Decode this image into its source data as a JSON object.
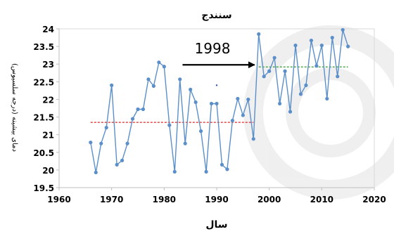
{
  "chart_data": {
    "type": "line",
    "title": "سنندج",
    "xlabel": "سال",
    "ylabel": "دمای بیشینه (درجه سلسیوس)",
    "xlim": [
      1960,
      2020
    ],
    "ylim": [
      19.5,
      24
    ],
    "xticks": [
      "1960",
      "1970",
      "1980",
      "1990",
      "2000",
      "2010",
      "2020"
    ],
    "yticks": [
      "19.5",
      "20",
      "20.5",
      "21",
      "21.5",
      "22",
      "22.5",
      "23",
      "23.5",
      "24"
    ],
    "grid": false,
    "series": [
      {
        "color": "#5b8fc9",
        "x": [
          1966,
          1967,
          1968,
          1969,
          1970,
          1971,
          1972,
          1973,
          1974,
          1975,
          1976,
          1977,
          1978,
          1979,
          1980,
          1981,
          1982,
          1983,
          1984,
          1985,
          1986,
          1987,
          1988,
          1989,
          1990,
          1991,
          1992,
          1993,
          1994,
          1995,
          1996,
          1997,
          1998,
          1999,
          2000,
          2001,
          2002,
          2003,
          2004,
          2005,
          2006,
          2007,
          2008,
          2009,
          2010,
          2011,
          2012,
          2013,
          2014,
          2015
        ],
        "y": [
          20.78,
          19.93,
          20.75,
          21.2,
          22.4,
          20.15,
          20.27,
          20.75,
          21.45,
          21.72,
          21.72,
          22.57,
          22.38,
          23.05,
          22.93,
          21.27,
          19.95,
          22.57,
          20.75,
          22.28,
          21.92,
          21.1,
          19.95,
          21.88,
          21.88,
          20.15,
          20.02,
          21.4,
          22.02,
          21.55,
          22.0,
          20.88,
          23.85,
          22.65,
          22.8,
          23.18,
          21.88,
          22.8,
          21.65,
          23.53,
          22.15,
          22.4,
          23.67,
          22.95,
          23.53,
          22.02,
          23.75,
          22.65,
          23.97,
          23.5
        ]
      }
    ],
    "reference_lines": [
      {
        "x_start": 1966,
        "x_end": 1997,
        "y": 21.35,
        "color": "#e02424",
        "style": "dashed"
      },
      {
        "x_start": 1998,
        "x_end": 2015,
        "y": 22.92,
        "color": "#2e9a2e",
        "style": "dashed"
      }
    ],
    "annotations": [
      {
        "text": "1998",
        "arrow_from_x": 1983.5,
        "arrow_to_x": 1997.2,
        "arrow_y": 22.98,
        "text_x": 1989.2,
        "text_y": 23.3
      }
    ],
    "stray_marker": {
      "x": 1990,
      "y": 22.4,
      "color": "#3050c0"
    }
  }
}
